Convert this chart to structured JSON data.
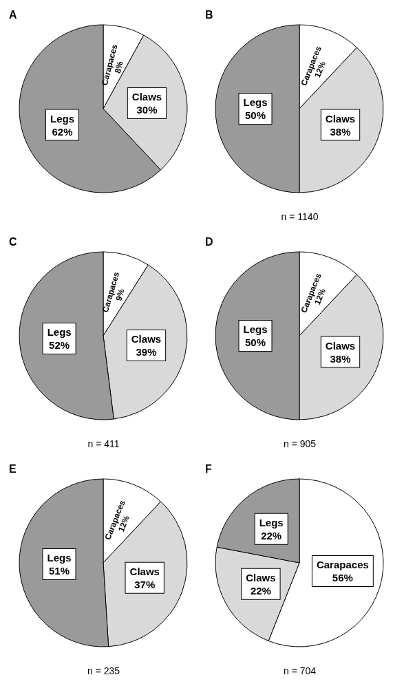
{
  "chart_data": [
    {
      "type": "pie",
      "title": "A",
      "categories": [
        "Carapaces",
        "Claws",
        "Legs"
      ],
      "values": [
        8,
        30,
        62
      ],
      "value_labels": [
        "8%",
        "30%",
        "62%"
      ],
      "colors": [
        "#ffffff",
        "#d9d9d9",
        "#9a9a9a"
      ]
    },
    {
      "type": "pie",
      "title": "B",
      "categories": [
        "Carapaces",
        "Claws",
        "Legs"
      ],
      "values": [
        12,
        38,
        50
      ],
      "value_labels": [
        "12%",
        "38%",
        "50%"
      ],
      "colors": [
        "#ffffff",
        "#d9d9d9",
        "#9a9a9a"
      ],
      "annotations": [
        "n = 1140"
      ]
    },
    {
      "type": "pie",
      "title": "C",
      "categories": [
        "Carapaces",
        "Claws",
        "Legs"
      ],
      "values": [
        9,
        39,
        52
      ],
      "value_labels": [
        "9%",
        "39%",
        "52%"
      ],
      "colors": [
        "#ffffff",
        "#d9d9d9",
        "#9a9a9a"
      ],
      "annotations": [
        "n = 411"
      ]
    },
    {
      "type": "pie",
      "title": "D",
      "categories": [
        "Carapaces",
        "Claws",
        "Legs"
      ],
      "values": [
        12,
        38,
        50
      ],
      "value_labels": [
        "12%",
        "38%",
        "50%"
      ],
      "colors": [
        "#ffffff",
        "#d9d9d9",
        "#9a9a9a"
      ],
      "annotations": [
        "n = 905"
      ]
    },
    {
      "type": "pie",
      "title": "E",
      "categories": [
        "Carapaces",
        "Claws",
        "Legs"
      ],
      "values": [
        12,
        37,
        51
      ],
      "value_labels": [
        "12%",
        "37%",
        "51%"
      ],
      "colors": [
        "#ffffff",
        "#d9d9d9",
        "#9a9a9a"
      ],
      "annotations": [
        "n = 235"
      ]
    },
    {
      "type": "pie",
      "title": "F",
      "categories": [
        "Carapaces",
        "Claws",
        "Legs"
      ],
      "values": [
        56,
        22,
        22
      ],
      "value_labels": [
        "56%",
        "22%",
        "22%"
      ],
      "colors": [
        "#ffffff",
        "#d9d9d9",
        "#9a9a9a"
      ],
      "annotations": [
        "n = 704"
      ]
    }
  ]
}
